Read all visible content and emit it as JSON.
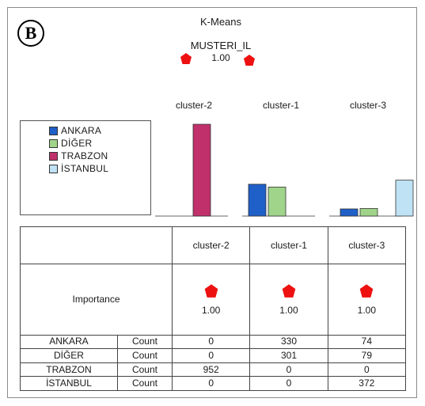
{
  "badge": "B",
  "title": "K-Means",
  "field": {
    "name": "MUSTERI_IL",
    "importance": "1.00"
  },
  "colors": {
    "ANKARA": "#1f5fc8",
    "DIGER": "#9fd48a",
    "TRABZON": "#c0306a",
    "ISTANBUL": "#bfe3f5",
    "marker": "#ee1111"
  },
  "legend": [
    {
      "label": "ANKARA",
      "color_key": "ANKARA"
    },
    {
      "label": "DİĞER",
      "color_key": "DIGER"
    },
    {
      "label": "TRABZON",
      "color_key": "TRABZON"
    },
    {
      "label": "İSTANBUL",
      "color_key": "ISTANBUL"
    }
  ],
  "table": {
    "importance_label": "Importance",
    "count_label": "Count",
    "clusters": [
      {
        "name": "cluster-2",
        "importance": "1.00"
      },
      {
        "name": "cluster-1",
        "importance": "1.00"
      },
      {
        "name": "cluster-3",
        "importance": "1.00"
      }
    ],
    "rows": [
      {
        "label": "ANKARA",
        "values": [
          "0",
          "330",
          "74"
        ]
      },
      {
        "label": "DİĞER",
        "values": [
          "0",
          "301",
          "79"
        ]
      },
      {
        "label": "TRABZON",
        "values": [
          "952",
          "0",
          "0"
        ]
      },
      {
        "label": "İSTANBUL",
        "values": [
          "0",
          "0",
          "372"
        ]
      }
    ]
  },
  "chart_data": {
    "type": "bar",
    "title": "K-Means",
    "categories": [
      "cluster-2",
      "cluster-1",
      "cluster-3"
    ],
    "series": [
      {
        "name": "ANKARA",
        "values": [
          0,
          330,
          74
        ]
      },
      {
        "name": "DİĞER",
        "values": [
          0,
          301,
          79
        ]
      },
      {
        "name": "TRABZON",
        "values": [
          952,
          0,
          0
        ]
      },
      {
        "name": "İSTANBUL",
        "values": [
          0,
          0,
          372
        ]
      }
    ],
    "ylim": [
      0,
      952
    ],
    "grid": false,
    "legend_position": "left"
  }
}
